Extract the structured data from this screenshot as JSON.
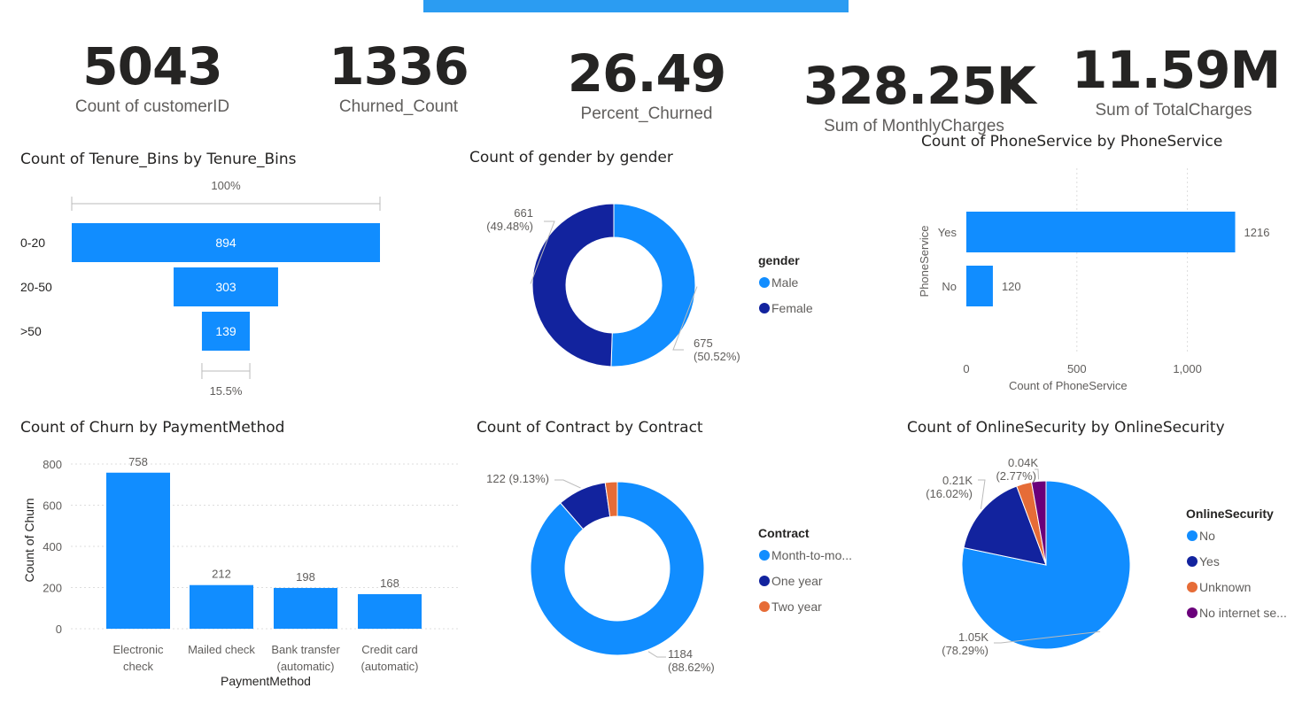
{
  "kpis": [
    {
      "value": "5043",
      "label": "Count of customerID"
    },
    {
      "value": "1336",
      "label": "Churned_Count"
    },
    {
      "value": "26.49",
      "label": "Percent_Churned"
    },
    {
      "value": "328.25K",
      "label": "Sum of MonthlyCharges"
    },
    {
      "value": "11.59M",
      "label": "Sum of TotalCharges"
    }
  ],
  "colors": {
    "primary": "#118dff",
    "navy": "#12239e",
    "orange": "#e66c37",
    "purple": "#6b007b",
    "header": "#2b9cf2"
  },
  "chart_data": [
    {
      "type": "funnel",
      "title": "Count of Tenure_Bins by Tenure_Bins",
      "categories": [
        "0-20",
        "20-50",
        ">50"
      ],
      "values": [
        894,
        303,
        139
      ],
      "value_labels": [
        "894",
        "303",
        "139"
      ],
      "top_label": "100%",
      "bottom_label": "15.5%"
    },
    {
      "type": "donut",
      "title": "Count of gender by gender",
      "legend_title": "gender",
      "legend": [
        "Male",
        "Female"
      ],
      "values": [
        675,
        661
      ],
      "data_labels": [
        {
          "value": "675",
          "pct": "(50.52%)"
        },
        {
          "value": "661",
          "pct": "(49.48%)"
        }
      ],
      "colors": [
        "#118dff",
        "#12239e"
      ],
      "legend_position": "right"
    },
    {
      "type": "bar",
      "orientation": "horizontal",
      "title": "Count of PhoneService by PhoneService",
      "categories": [
        "Yes",
        "No"
      ],
      "values": [
        1216,
        120
      ],
      "value_labels": [
        "1216",
        "120"
      ],
      "xlabel": "Count of PhoneService",
      "ylabel": "PhoneService",
      "xlim": [
        0,
        1250
      ],
      "xticks": [
        0,
        500,
        1000
      ],
      "xtick_labels": [
        "0",
        "500",
        "1,000"
      ],
      "grid": true
    },
    {
      "type": "bar",
      "title": "Count of Churn by PaymentMethod",
      "categories": [
        [
          "Electronic",
          "check"
        ],
        [
          "Mailed check"
        ],
        [
          "Bank transfer",
          "(automatic)"
        ],
        [
          "Credit card",
          "(automatic)"
        ]
      ],
      "values": [
        758,
        212,
        198,
        168
      ],
      "value_labels": [
        "758",
        "212",
        "198",
        "168"
      ],
      "xlabel": "PaymentMethod",
      "ylabel": "Count of Churn",
      "ylim": [
        0,
        800
      ],
      "yticks": [
        0,
        200,
        400,
        600,
        800
      ],
      "grid": true
    },
    {
      "type": "donut",
      "title": "Count of Contract by Contract",
      "legend_title": "Contract",
      "legend": [
        "Month-to-mo...",
        "One year",
        "Two year"
      ],
      "values": [
        1184,
        122,
        30
      ],
      "data_labels": [
        {
          "value": "1184",
          "pct": "(88.62%)"
        },
        {
          "value": "122 (9.13%)",
          "pct": ""
        },
        {
          "value": "",
          "pct": ""
        }
      ],
      "colors": [
        "#118dff",
        "#12239e",
        "#e66c37"
      ],
      "legend_position": "right"
    },
    {
      "type": "pie",
      "title": "Count of OnlineSecurity by OnlineSecurity",
      "legend_title": "OnlineSecurity",
      "legend": [
        "No",
        "Yes",
        "Unknown",
        "No internet se..."
      ],
      "values": [
        78.29,
        16.02,
        2.92,
        2.77
      ],
      "data_labels": [
        {
          "value": "1.05K",
          "pct": "(78.29%)"
        },
        {
          "value": "0.21K",
          "pct": "(16.02%)"
        },
        {
          "value": "",
          "pct": ""
        },
        {
          "value": "0.04K",
          "pct": "(2.77%)"
        }
      ],
      "colors": [
        "#118dff",
        "#12239e",
        "#e66c37",
        "#6b007b"
      ],
      "legend_position": "right"
    }
  ]
}
